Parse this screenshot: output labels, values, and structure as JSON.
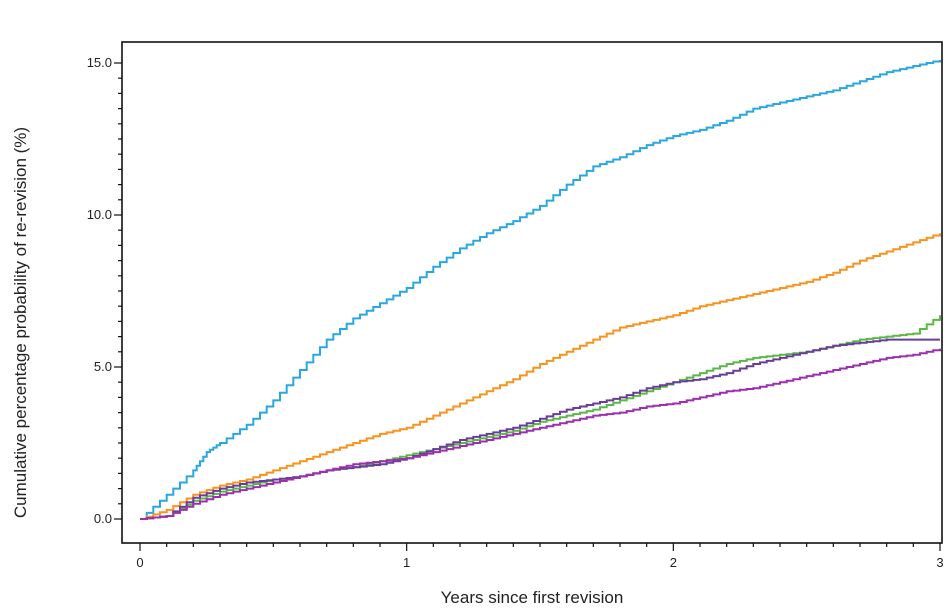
{
  "chart_data": {
    "type": "line",
    "step": true,
    "title": "",
    "xlabel": "Years since first revision",
    "ylabel": "Cumulative percentage probability of re-revision (%)",
    "xlim": [
      0,
      3
    ],
    "ylim": [
      -0.5,
      15.8
    ],
    "x_ticks": [
      0,
      1,
      2,
      3
    ],
    "x_tick_labels": [
      "0",
      "1",
      "2",
      "3"
    ],
    "y_ticks": [
      0,
      5,
      10,
      15
    ],
    "y_tick_labels": [
      "0.0",
      "5.0",
      "10.0",
      "15.0"
    ],
    "grid": false,
    "legend": "none",
    "series": [
      {
        "color": "#2aa7e0",
        "x": [
          0,
          0.1,
          0.2,
          0.25,
          0.3,
          0.4,
          0.5,
          0.6,
          0.7,
          0.8,
          0.9,
          1.0,
          1.1,
          1.2,
          1.3,
          1.4,
          1.5,
          1.6,
          1.7,
          1.8,
          1.9,
          2.0,
          2.1,
          2.2,
          2.3,
          2.4,
          2.5,
          2.6,
          2.7,
          2.8,
          2.9,
          3.0
        ],
        "values": [
          0,
          0.8,
          1.6,
          2.2,
          2.5,
          3.1,
          3.9,
          4.9,
          5.9,
          6.6,
          7.1,
          7.6,
          8.3,
          8.9,
          9.4,
          9.8,
          10.3,
          11.0,
          11.6,
          11.9,
          12.3,
          12.6,
          12.8,
          13.1,
          13.5,
          13.7,
          13.9,
          14.1,
          14.4,
          14.7,
          14.9,
          15.1
        ]
      },
      {
        "color": "#f7941d",
        "x": [
          0,
          0.1,
          0.2,
          0.3,
          0.4,
          0.5,
          0.6,
          0.7,
          0.8,
          0.9,
          1.0,
          1.1,
          1.2,
          1.3,
          1.4,
          1.5,
          1.6,
          1.7,
          1.8,
          1.9,
          2.0,
          2.1,
          2.2,
          2.3,
          2.4,
          2.5,
          2.6,
          2.7,
          2.8,
          2.9,
          3.0
        ],
        "values": [
          0,
          0.3,
          0.8,
          1.1,
          1.3,
          1.6,
          1.9,
          2.2,
          2.5,
          2.8,
          3.0,
          3.4,
          3.8,
          4.2,
          4.6,
          5.1,
          5.5,
          5.9,
          6.3,
          6.5,
          6.7,
          7.0,
          7.2,
          7.4,
          7.6,
          7.8,
          8.1,
          8.5,
          8.8,
          9.1,
          9.4
        ]
      },
      {
        "color": "#5ab946",
        "x": [
          0,
          0.1,
          0.2,
          0.3,
          0.4,
          0.5,
          0.6,
          0.7,
          0.8,
          0.9,
          1.0,
          1.1,
          1.2,
          1.3,
          1.4,
          1.5,
          1.6,
          1.7,
          1.8,
          1.9,
          2.0,
          2.1,
          2.2,
          2.3,
          2.4,
          2.5,
          2.6,
          2.7,
          2.8,
          2.9,
          3.0
        ],
        "values": [
          0,
          0.1,
          0.6,
          0.9,
          1.1,
          1.3,
          1.4,
          1.6,
          1.7,
          1.9,
          2.1,
          2.3,
          2.5,
          2.7,
          2.9,
          3.2,
          3.4,
          3.6,
          3.9,
          4.2,
          4.5,
          4.8,
          5.1,
          5.3,
          5.4,
          5.5,
          5.7,
          5.9,
          6.0,
          6.1,
          6.7
        ]
      },
      {
        "color": "#6a3d9a",
        "x": [
          0,
          0.1,
          0.2,
          0.3,
          0.4,
          0.5,
          0.6,
          0.7,
          0.8,
          0.9,
          1.0,
          1.1,
          1.2,
          1.3,
          1.4,
          1.5,
          1.6,
          1.7,
          1.8,
          1.9,
          2.0,
          2.1,
          2.2,
          2.3,
          2.4,
          2.5,
          2.6,
          2.7,
          2.8,
          2.9,
          3.0
        ],
        "values": [
          0,
          0.1,
          0.7,
          1.0,
          1.2,
          1.3,
          1.4,
          1.6,
          1.7,
          1.8,
          2.0,
          2.3,
          2.6,
          2.8,
          3.0,
          3.3,
          3.6,
          3.8,
          4.0,
          4.3,
          4.5,
          4.6,
          4.8,
          5.1,
          5.3,
          5.5,
          5.7,
          5.8,
          5.9,
          5.9,
          5.9
        ]
      },
      {
        "color": "#9b2fae",
        "x": [
          0,
          0.1,
          0.2,
          0.3,
          0.4,
          0.5,
          0.6,
          0.7,
          0.8,
          0.9,
          1.0,
          1.1,
          1.2,
          1.3,
          1.4,
          1.5,
          1.6,
          1.7,
          1.8,
          1.9,
          2.0,
          2.1,
          2.2,
          2.3,
          2.4,
          2.5,
          2.6,
          2.7,
          2.8,
          2.9,
          3.0
        ],
        "values": [
          0,
          0.1,
          0.5,
          0.8,
          1.0,
          1.2,
          1.4,
          1.6,
          1.8,
          1.9,
          2.0,
          2.2,
          2.4,
          2.6,
          2.8,
          3.0,
          3.2,
          3.4,
          3.5,
          3.7,
          3.8,
          4.0,
          4.2,
          4.3,
          4.5,
          4.7,
          4.9,
          5.1,
          5.3,
          5.4,
          5.6
        ]
      }
    ]
  }
}
